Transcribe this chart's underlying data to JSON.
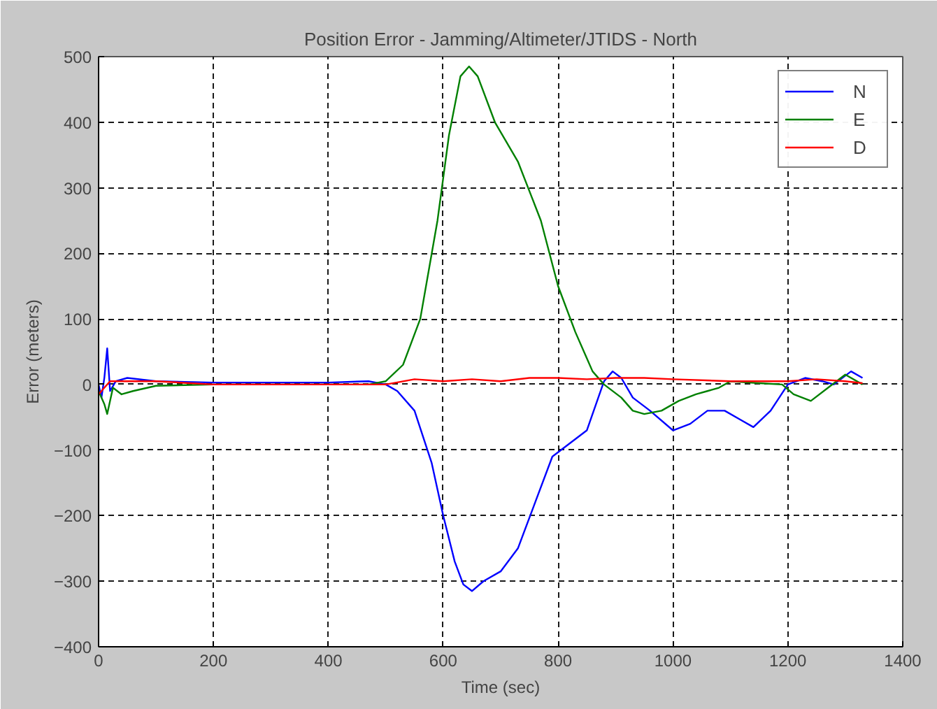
{
  "chart_data": {
    "type": "line",
    "title": "Position Error - Jamming/Altimeter/JTIDS - North",
    "xlabel": "Time (sec)",
    "ylabel": "Error (meters)",
    "xlim": [
      0,
      1400
    ],
    "ylim": [
      -400,
      500
    ],
    "xticks": [
      0,
      200,
      400,
      600,
      800,
      1000,
      1200,
      1400
    ],
    "yticks": [
      -400,
      -300,
      -200,
      -100,
      0,
      100,
      200,
      300,
      400,
      500
    ],
    "grid": true,
    "legend": "top right",
    "marker": "none",
    "line_style": "solid",
    "series": [
      {
        "name": "N",
        "color": "#0000ff",
        "x": [
          0,
          5,
          10,
          15,
          20,
          30,
          50,
          100,
          200,
          300,
          400,
          470,
          500,
          520,
          550,
          580,
          600,
          620,
          635,
          650,
          670,
          700,
          730,
          760,
          790,
          820,
          850,
          870,
          880,
          895,
          910,
          930,
          960,
          1000,
          1030,
          1060,
          1090,
          1120,
          1140,
          1170,
          1200,
          1230,
          1260,
          1280,
          1310,
          1330
        ],
        "values": [
          0,
          -20,
          10,
          55,
          -10,
          5,
          10,
          5,
          3,
          3,
          3,
          5,
          0,
          -10,
          -40,
          -120,
          -200,
          -270,
          -305,
          -315,
          -300,
          -285,
          -250,
          -180,
          -110,
          -90,
          -70,
          -20,
          5,
          20,
          10,
          -20,
          -40,
          -70,
          -60,
          -40,
          -40,
          -55,
          -65,
          -40,
          0,
          10,
          5,
          0,
          20,
          10
        ]
      },
      {
        "name": "E",
        "color": "#008000",
        "x": [
          0,
          10,
          15,
          25,
          40,
          60,
          100,
          200,
          400,
          470,
          500,
          530,
          560,
          590,
          610,
          630,
          645,
          660,
          690,
          730,
          770,
          800,
          830,
          860,
          880,
          910,
          930,
          950,
          980,
          1010,
          1040,
          1060,
          1080,
          1100,
          1150,
          1190,
          1210,
          1240,
          1270,
          1300,
          1330
        ],
        "values": [
          -10,
          -30,
          -45,
          -5,
          -15,
          -10,
          -2,
          0,
          0,
          0,
          5,
          30,
          100,
          250,
          380,
          470,
          485,
          470,
          400,
          340,
          250,
          150,
          80,
          20,
          0,
          -20,
          -40,
          -45,
          -40,
          -25,
          -15,
          -10,
          -5,
          5,
          2,
          0,
          -15,
          -25,
          -5,
          15,
          0
        ]
      },
      {
        "name": "D",
        "color": "#ff0000",
        "x": [
          0,
          10,
          20,
          40,
          100,
          200,
          500,
          550,
          600,
          650,
          700,
          750,
          800,
          850,
          900,
          950,
          1000,
          1100,
          1200,
          1250,
          1300,
          1330
        ],
        "values": [
          -15,
          -5,
          5,
          5,
          5,
          0,
          0,
          8,
          5,
          8,
          5,
          10,
          10,
          8,
          10,
          10,
          8,
          5,
          5,
          8,
          5,
          2
        ]
      }
    ]
  }
}
